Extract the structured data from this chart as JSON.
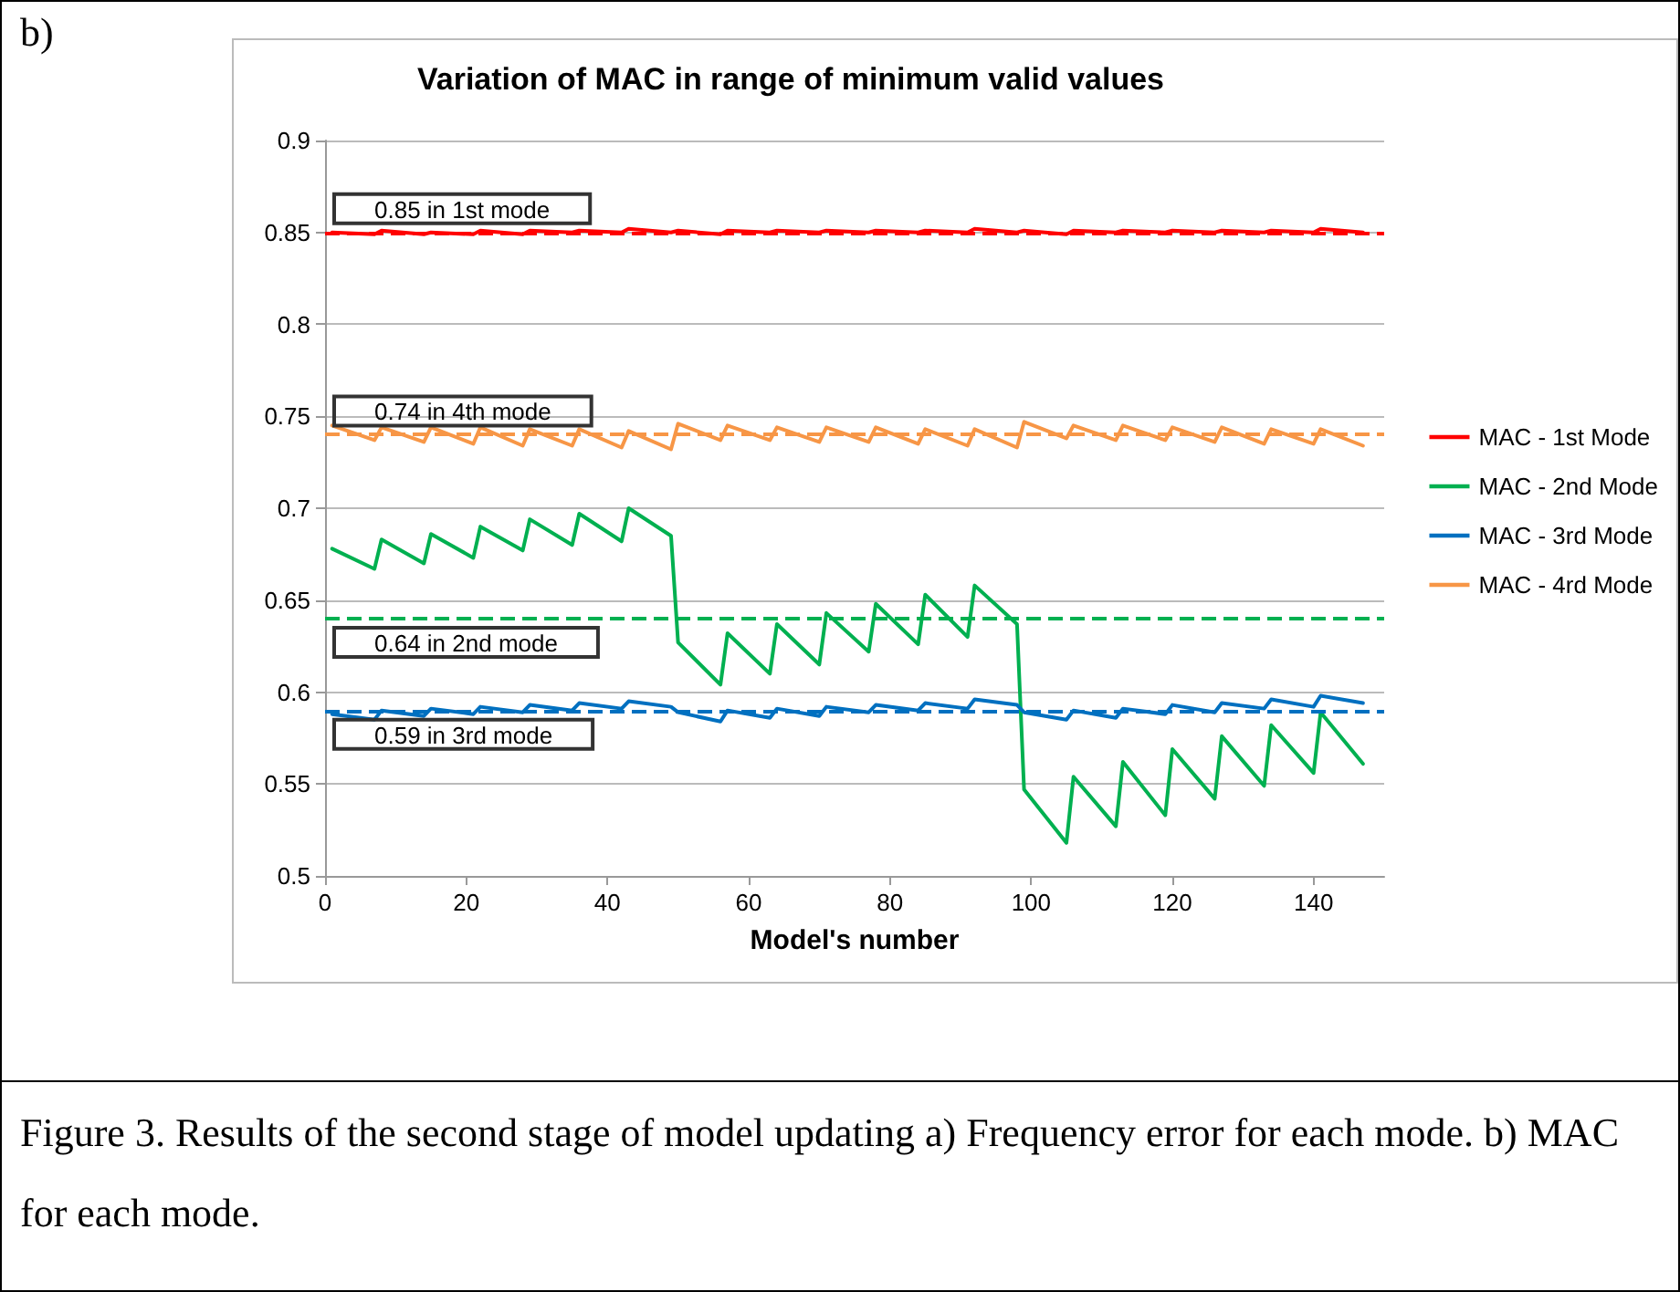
{
  "chart_data": {
    "type": "line",
    "title": "Variation of MAC in range of minimum valid values",
    "xlabel": "Model's number",
    "annotations": [
      "b)",
      "Figure 3. Results of the second stage of model updating a) Frequency error for each mode. b) MAC for each mode."
    ],
    "xlim": [
      0,
      150
    ],
    "xticks": [
      0,
      20,
      40,
      60,
      80,
      100,
      120,
      140
    ],
    "ylim": [
      0.5,
      0.9
    ],
    "yticks": [
      0.5,
      0.55,
      0.6,
      0.65,
      0.7,
      0.75,
      0.8,
      0.85,
      0.9
    ],
    "grid": "y",
    "legend": "right",
    "marker": "none",
    "line_style": "solid",
    "series": [
      {
        "name": "MAC - 1st Mode",
        "color": "#ff0000",
        "x": [
          1,
          7,
          8,
          14,
          15,
          21,
          22,
          28,
          29,
          35,
          36,
          42,
          43,
          49,
          50,
          56,
          57,
          63,
          64,
          70,
          71,
          77,
          78,
          84,
          85,
          91,
          92,
          98,
          99,
          105,
          106,
          112,
          113,
          119,
          120,
          126,
          127,
          133,
          134,
          140,
          141,
          147
        ],
        "values": [
          0.85,
          0.849,
          0.851,
          0.849,
          0.85,
          0.849,
          0.851,
          0.849,
          0.851,
          0.85,
          0.851,
          0.85,
          0.852,
          0.85,
          0.851,
          0.849,
          0.851,
          0.85,
          0.851,
          0.85,
          0.851,
          0.85,
          0.851,
          0.85,
          0.851,
          0.85,
          0.852,
          0.85,
          0.851,
          0.849,
          0.851,
          0.85,
          0.851,
          0.85,
          0.851,
          0.85,
          0.851,
          0.85,
          0.851,
          0.85,
          0.852,
          0.85
        ]
      },
      {
        "name": "MAC - 2nd Mode",
        "color": "#00b050",
        "x": [
          1,
          7,
          8,
          14,
          15,
          21,
          22,
          28,
          29,
          35,
          36,
          42,
          43,
          49,
          50,
          56,
          57,
          63,
          64,
          70,
          71,
          77,
          78,
          84,
          85,
          91,
          92,
          98,
          99,
          105,
          106,
          112,
          113,
          119,
          120,
          126,
          127,
          133,
          134,
          140,
          141,
          147
        ],
        "values": [
          0.678,
          0.667,
          0.683,
          0.67,
          0.686,
          0.673,
          0.69,
          0.677,
          0.694,
          0.68,
          0.697,
          0.682,
          0.7,
          0.685,
          0.627,
          0.604,
          0.632,
          0.61,
          0.637,
          0.615,
          0.643,
          0.622,
          0.648,
          0.626,
          0.653,
          0.63,
          0.658,
          0.637,
          0.547,
          0.518,
          0.554,
          0.527,
          0.562,
          0.533,
          0.569,
          0.542,
          0.576,
          0.549,
          0.582,
          0.556,
          0.589,
          0.561
        ]
      },
      {
        "name": "MAC - 3rd Mode",
        "color": "#0070c0",
        "x": [
          1,
          7,
          8,
          14,
          15,
          21,
          22,
          28,
          29,
          35,
          36,
          42,
          43,
          49,
          50,
          56,
          57,
          63,
          64,
          70,
          71,
          77,
          78,
          84,
          85,
          91,
          92,
          98,
          99,
          105,
          106,
          112,
          113,
          119,
          120,
          126,
          127,
          133,
          134,
          140,
          141,
          147
        ],
        "values": [
          0.588,
          0.585,
          0.59,
          0.587,
          0.591,
          0.588,
          0.592,
          0.589,
          0.593,
          0.59,
          0.594,
          0.591,
          0.595,
          0.592,
          0.589,
          0.584,
          0.59,
          0.586,
          0.591,
          0.587,
          0.592,
          0.589,
          0.593,
          0.59,
          0.594,
          0.591,
          0.596,
          0.593,
          0.589,
          0.585,
          0.59,
          0.586,
          0.591,
          0.588,
          0.593,
          0.589,
          0.594,
          0.591,
          0.596,
          0.592,
          0.598,
          0.594
        ]
      },
      {
        "name": "MAC - 4rd Mode",
        "color": "#f79646",
        "x": [
          1,
          7,
          8,
          14,
          15,
          21,
          22,
          28,
          29,
          35,
          36,
          42,
          43,
          49,
          50,
          56,
          57,
          63,
          64,
          70,
          71,
          77,
          78,
          84,
          85,
          91,
          92,
          98,
          99,
          105,
          106,
          112,
          113,
          119,
          120,
          126,
          127,
          133,
          134,
          140,
          141,
          147
        ],
        "values": [
          0.745,
          0.737,
          0.744,
          0.736,
          0.744,
          0.735,
          0.744,
          0.734,
          0.743,
          0.734,
          0.743,
          0.733,
          0.742,
          0.732,
          0.746,
          0.737,
          0.745,
          0.737,
          0.744,
          0.736,
          0.744,
          0.736,
          0.744,
          0.735,
          0.743,
          0.734,
          0.743,
          0.733,
          0.747,
          0.738,
          0.745,
          0.737,
          0.745,
          0.737,
          0.744,
          0.736,
          0.744,
          0.735,
          0.743,
          0.735,
          0.743,
          0.734
        ]
      }
    ],
    "ref_lines": [
      {
        "axis": "y",
        "value": 0.85,
        "label": "0.85 in 1st mode",
        "color": "#ff0000",
        "line_style": "dashed"
      },
      {
        "axis": "y",
        "value": 0.74,
        "label": "0.74 in 4th mode",
        "color": "#f79646",
        "line_style": "dashed"
      },
      {
        "axis": "y",
        "value": 0.64,
        "label": "0.64 in 2nd mode",
        "color": "#00b050",
        "line_style": "dashed"
      },
      {
        "axis": "y",
        "value": 0.59,
        "label": "0.59 in 3rd mode",
        "color": "#0070c0",
        "line_style": "dashed"
      }
    ]
  }
}
